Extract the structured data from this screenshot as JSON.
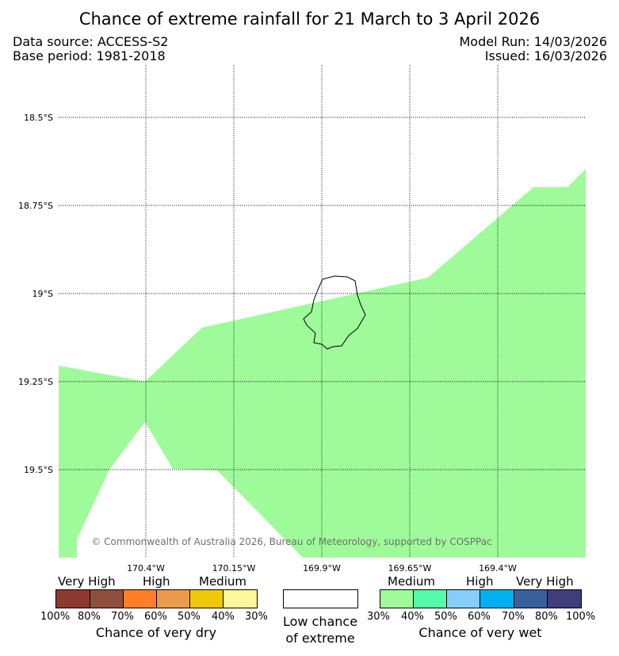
{
  "header": {
    "title": "Chance of extreme rainfall for 21 March to 3 April 2026",
    "data_source": "Data source: ACCESS-S2",
    "base_period": "Base period: 1981-2018",
    "model_run": "Model Run: 14/03/2026",
    "issued": "Issued: 16/03/2026"
  },
  "map": {
    "lat_labels": [
      "18.5°S",
      "18.75°S",
      "19°S",
      "19.25°S",
      "19.5°S"
    ],
    "lon_labels": [
      "170.4°W",
      "170.15°W",
      "169.9°W",
      "169.65°W",
      "169.4°W"
    ],
    "region_category": "Medium chance of very wet (30-40%)",
    "copyright": "© Commonwealth of Australia 2026, Bureau of Meteorology, supported by COSPPac"
  },
  "legend": {
    "dry": {
      "title": "Chance of very dry",
      "groups": [
        "Very High",
        "High",
        "Medium"
      ],
      "ticks": [
        "100%",
        "80%",
        "70%",
        "60%",
        "50%",
        "40%",
        "30%"
      ],
      "colors": [
        "#8e3a30",
        "#8f4f3c",
        "#ff7f27",
        "#eb9a4b",
        "#f0c80a",
        "#fff59a"
      ]
    },
    "neutral": {
      "title_line1": "Low chance",
      "title_line2": "of extreme",
      "color": "#ffffff"
    },
    "wet": {
      "title": "Chance of very wet",
      "groups": [
        "Medium",
        "High",
        "Very High"
      ],
      "ticks": [
        "30%",
        "40%",
        "50%",
        "60%",
        "70%",
        "80%",
        "100%"
      ],
      "colors": [
        "#9ffb9a",
        "#55fba8",
        "#87cdfb",
        "#00b0f0",
        "#3a5f9d",
        "#3f3e7a"
      ]
    }
  }
}
